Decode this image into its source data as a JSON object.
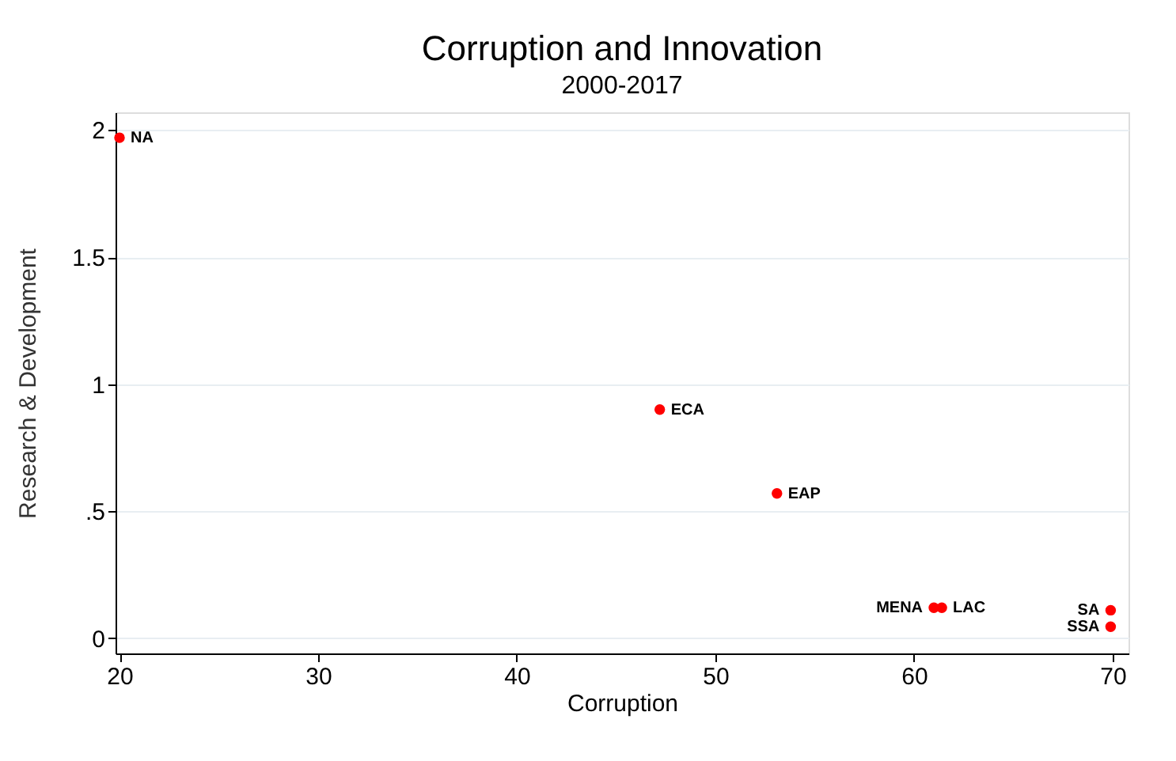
{
  "chart_data": {
    "type": "scatter",
    "title": "Corruption and Innovation",
    "subtitle": "2000-2017",
    "xlabel": "Corruption",
    "ylabel": "Research & Development",
    "x": [
      20.0,
      47.2,
      53.1,
      61.0,
      61.4,
      69.9,
      69.9
    ],
    "series": [
      {
        "color": "#ff0000",
        "values": [
          1.97,
          0.9,
          0.57,
          0.12,
          0.12,
          0.11,
          0.045
        ]
      }
    ],
    "annotations": [
      {
        "text": "NA",
        "x": 20.0,
        "y": 1.97
      },
      {
        "text": "ECA",
        "x": 47.2,
        "y": 0.9
      },
      {
        "text": "EAP",
        "x": 53.1,
        "y": 0.57
      },
      {
        "text": "MENA",
        "x": 61.0,
        "y": 0.12
      },
      {
        "text": "LAC",
        "x": 61.4,
        "y": 0.12
      },
      {
        "text": "SA",
        "x": 69.9,
        "y": 0.11
      },
      {
        "text": "SSA",
        "x": 69.9,
        "y": 0.045
      }
    ],
    "xlim": [
      19.8,
      70.8
    ],
    "xticks": [
      20,
      30,
      40,
      50,
      60,
      70
    ],
    "ylim": [
      -0.06,
      2.07
    ],
    "yticks": [
      0,
      {
        "value": 0.5,
        "label": ".5"
      },
      1,
      1.5,
      2
    ],
    "grid": "y",
    "marker": "circle"
  }
}
